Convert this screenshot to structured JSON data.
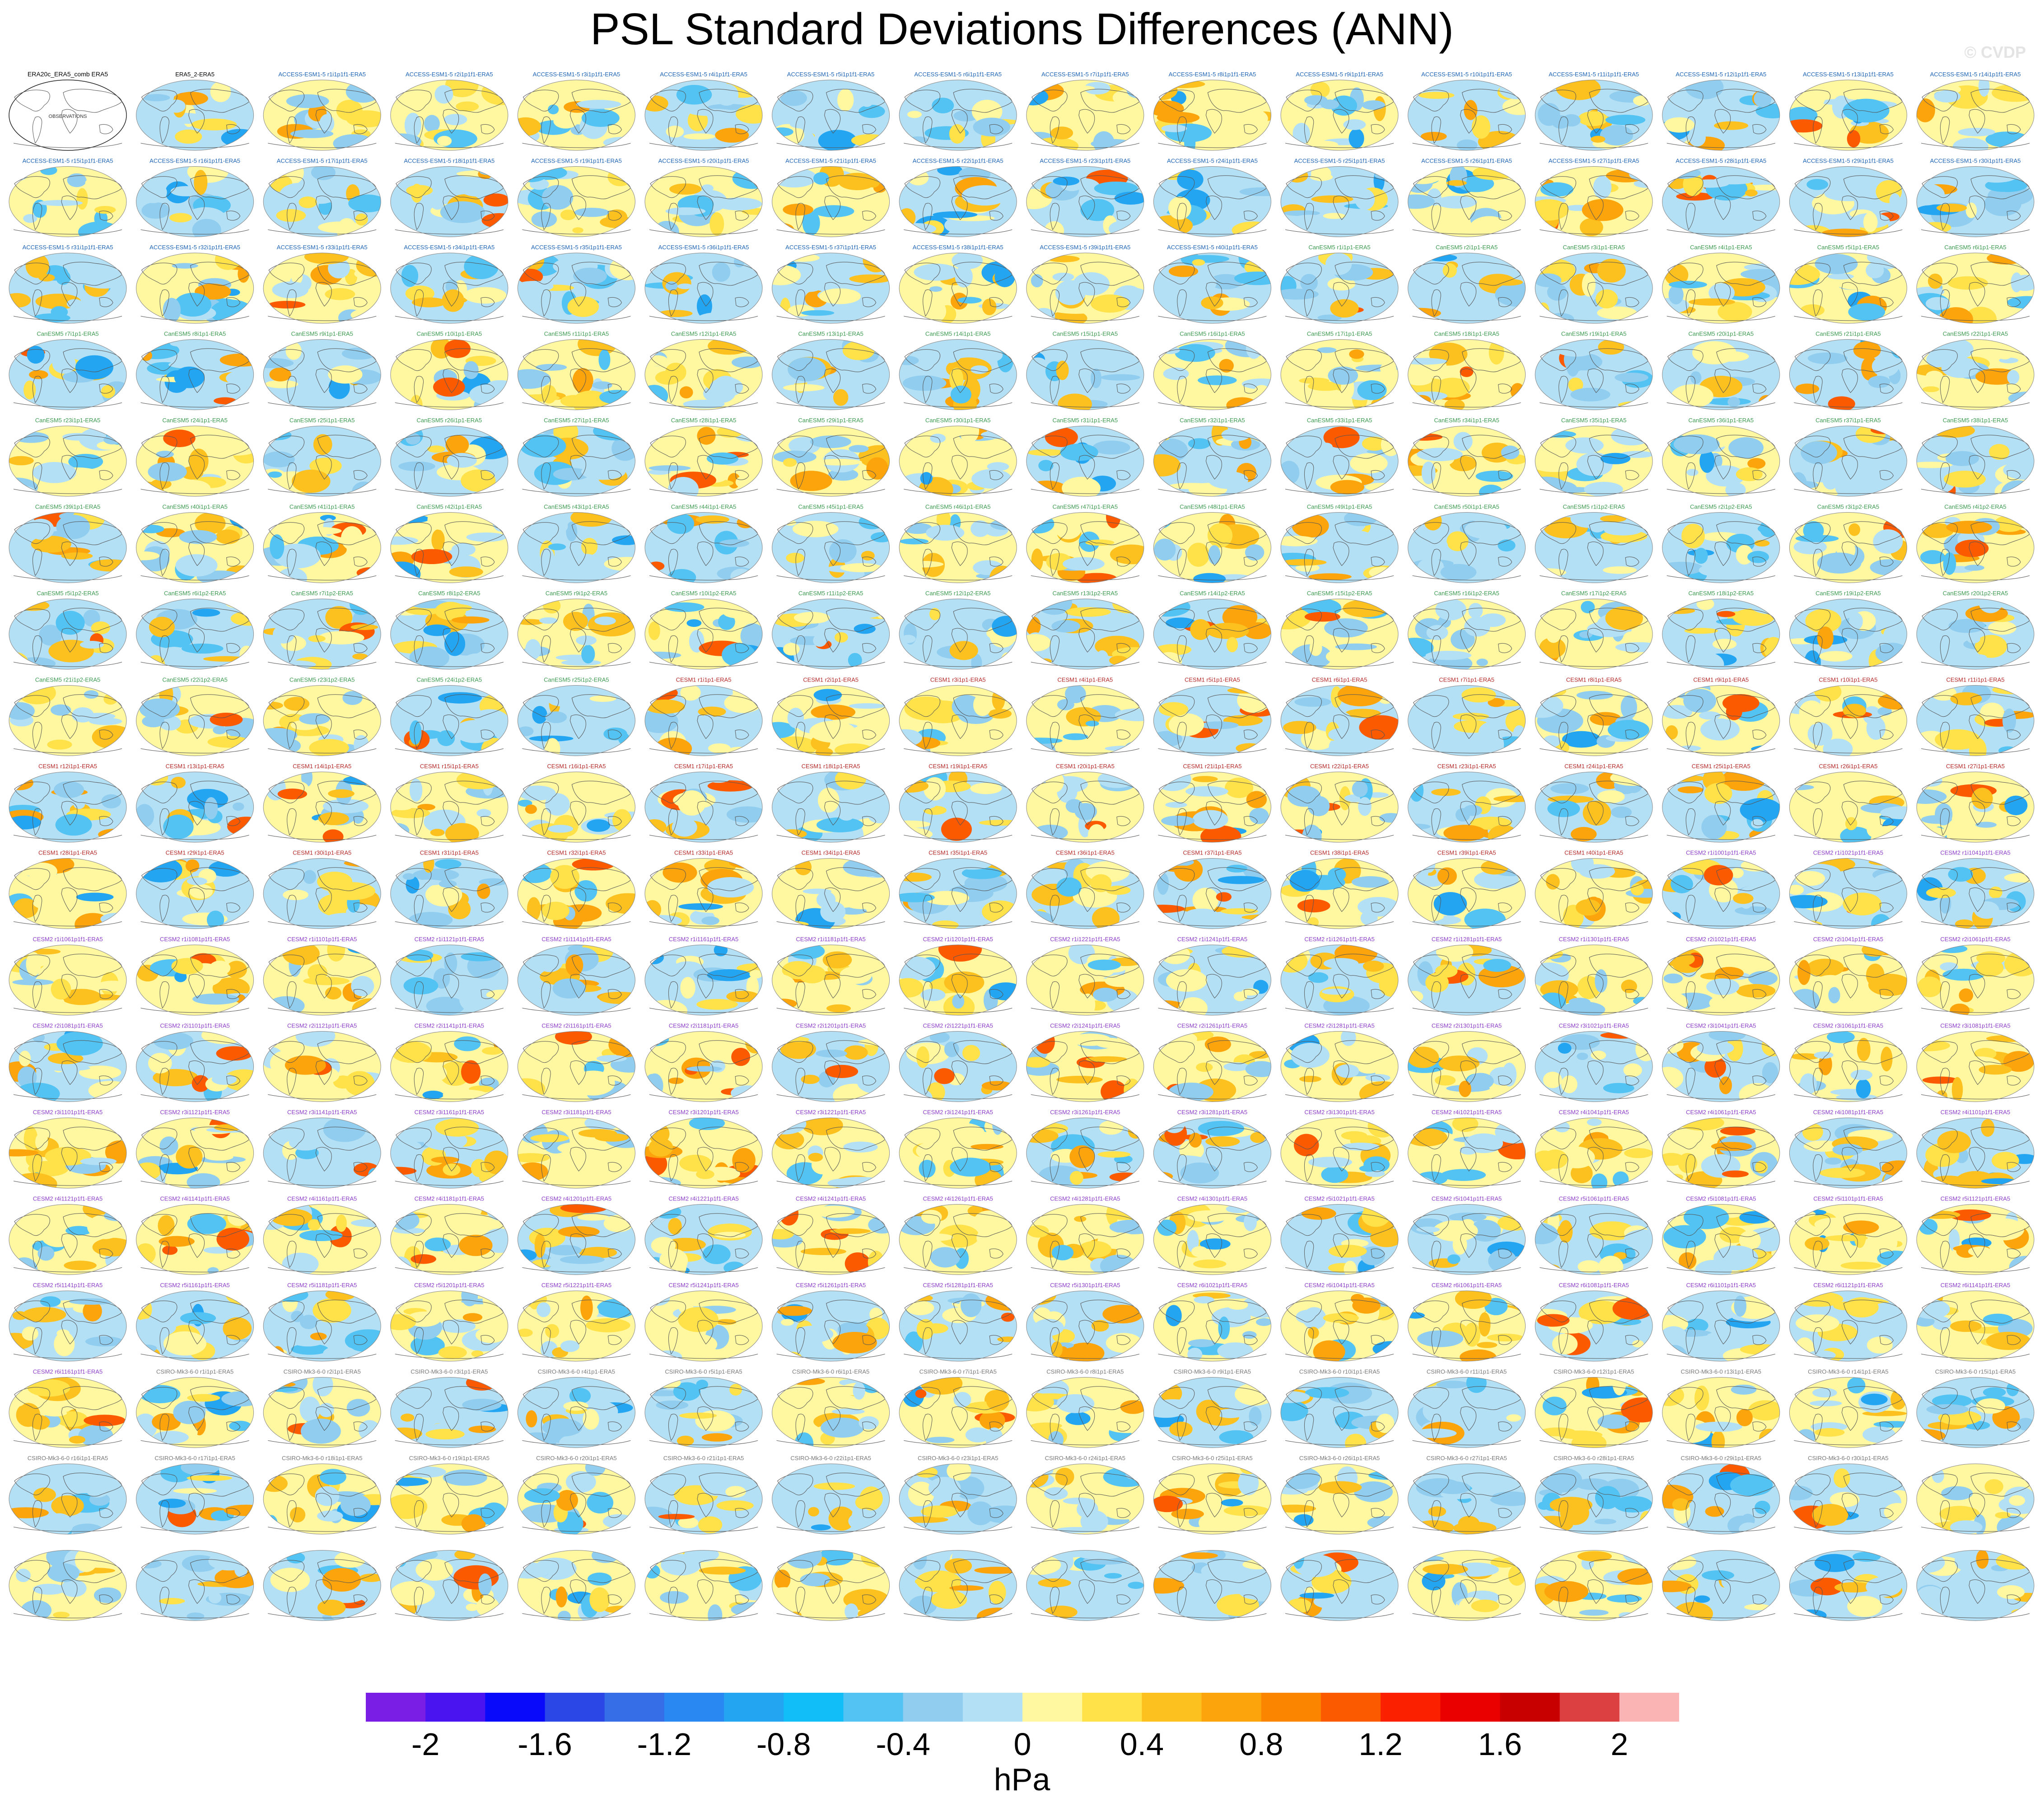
{
  "title": "PSL Standard Deviations Differences (ANN)",
  "watermark": "© CVDP",
  "units": "hPa",
  "colorbar": {
    "colors": [
      "#7a1ee6",
      "#4a14f0",
      "#0a0afa",
      "#2b48e6",
      "#356ee6",
      "#2a88f2",
      "#23a5f2",
      "#12bef7",
      "#52c3f2",
      "#90cdee",
      "#b4e0f6",
      "#fff8a0",
      "#ffe24a",
      "#fcc11e",
      "#fca40c",
      "#fc8500",
      "#fc5a00",
      "#fa2000",
      "#eb0000",
      "#c80000",
      "#dc4040",
      "#fab4b4"
    ],
    "labels": [
      "-2",
      "-1.6",
      "-1.2",
      "-0.8",
      "-0.4",
      "0",
      "0.4",
      "0.8",
      "1.2",
      "1.6",
      "2"
    ]
  },
  "reference_panel": {
    "title": "ERA20c_ERA5_comb ERA5",
    "subtitle": "OBSERVATIONS"
  },
  "panels": [
    "ERA5_2-ERA5",
    "ACCESS-ESM1-5 r1i1p1f1-ERA5",
    "ACCESS-ESM1-5 r2i1p1f1-ERA5",
    "ACCESS-ESM1-5 r3i1p1f1-ERA5",
    "ACCESS-ESM1-5 r4i1p1f1-ERA5",
    "ACCESS-ESM1-5 r5i1p1f1-ERA5",
    "ACCESS-ESM1-5 r6i1p1f1-ERA5",
    "ACCESS-ESM1-5 r7i1p1f1-ERA5",
    "ACCESS-ESM1-5 r8i1p1f1-ERA5",
    "ACCESS-ESM1-5 r9i1p1f1-ERA5",
    "ACCESS-ESM1-5 r10i1p1f1-ERA5",
    "ACCESS-ESM1-5 r11i1p1f1-ERA5",
    "ACCESS-ESM1-5 r12i1p1f1-ERA5",
    "ACCESS-ESM1-5 r13i1p1f1-ERA5",
    "ACCESS-ESM1-5 r14i1p1f1-ERA5",
    "ACCESS-ESM1-5 r15i1p1f1-ERA5",
    "ACCESS-ESM1-5 r16i1p1f1-ERA5",
    "ACCESS-ESM1-5 r17i1p1f1-ERA5",
    "ACCESS-ESM1-5 r18i1p1f1-ERA5",
    "ACCESS-ESM1-5 r19i1p1f1-ERA5",
    "ACCESS-ESM1-5 r20i1p1f1-ERA5",
    "ACCESS-ESM1-5 r21i1p1f1-ERA5",
    "ACCESS-ESM1-5 r22i1p1f1-ERA5",
    "ACCESS-ESM1-5 r23i1p1f1-ERA5",
    "ACCESS-ESM1-5 r24i1p1f1-ERA5",
    "ACCESS-ESM1-5 r25i1p1f1-ERA5",
    "ACCESS-ESM1-5 r26i1p1f1-ERA5",
    "ACCESS-ESM1-5 r27i1p1f1-ERA5",
    "ACCESS-ESM1-5 r28i1p1f1-ERA5",
    "ACCESS-ESM1-5 r29i1p1f1-ERA5",
    "ACCESS-ESM1-5 r30i1p1f1-ERA5",
    "ACCESS-ESM1-5 r31i1p1f1-ERA5",
    "ACCESS-ESM1-5 r32i1p1f1-ERA5",
    "ACCESS-ESM1-5 r33i1p1f1-ERA5",
    "ACCESS-ESM1-5 r34i1p1f1-ERA5",
    "ACCESS-ESM1-5 r35i1p1f1-ERA5",
    "ACCESS-ESM1-5 r36i1p1f1-ERA5",
    "ACCESS-ESM1-5 r37i1p1f1-ERA5",
    "ACCESS-ESM1-5 r38i1p1f1-ERA5",
    "ACCESS-ESM1-5 r39i1p1f1-ERA5",
    "ACCESS-ESM1-5 r40i1p1f1-ERA5",
    "CanESM5 r1i1p1-ERA5",
    "CanESM5 r2i1p1-ERA5",
    "CanESM5 r3i1p1-ERA5",
    "CanESM5 r4i1p1-ERA5",
    "CanESM5 r5i1p1-ERA5",
    "CanESM5 r6i1p1-ERA5",
    "CanESM5 r7i1p1-ERA5",
    "CanESM5 r8i1p1-ERA5",
    "CanESM5 r9i1p1-ERA5",
    "CanESM5 r10i1p1-ERA5",
    "CanESM5 r11i1p1-ERA5",
    "CanESM5 r12i1p1-ERA5",
    "CanESM5 r13i1p1-ERA5",
    "CanESM5 r14i1p1-ERA5",
    "CanESM5 r15i1p1-ERA5",
    "CanESM5 r16i1p1-ERA5",
    "CanESM5 r17i1p1-ERA5",
    "CanESM5 r18i1p1-ERA5",
    "CanESM5 r19i1p1-ERA5",
    "CanESM5 r20i1p1-ERA5",
    "CanESM5 r21i1p1-ERA5",
    "CanESM5 r22i1p1-ERA5",
    "CanESM5 r23i1p1-ERA5",
    "CanESM5 r24i1p1-ERA5",
    "CanESM5 r25i1p1-ERA5",
    "CanESM5 r26i1p1-ERA5",
    "CanESM5 r27i1p1-ERA5",
    "CanESM5 r28i1p1-ERA5",
    "CanESM5 r29i1p1-ERA5",
    "CanESM5 r30i1p1-ERA5",
    "CanESM5 r31i1p1-ERA5",
    "CanESM5 r32i1p1-ERA5",
    "CanESM5 r33i1p1-ERA5",
    "CanESM5 r34i1p1-ERA5",
    "CanESM5 r35i1p1-ERA5",
    "CanESM5 r36i1p1-ERA5",
    "CanESM5 r37i1p1-ERA5",
    "CanESM5 r38i1p1-ERA5",
    "CanESM5 r39i1p1-ERA5",
    "CanESM5 r40i1p1-ERA5",
    "CanESM5 r41i1p1-ERA5",
    "CanESM5 r42i1p1-ERA5",
    "CanESM5 r43i1p1-ERA5",
    "CanESM5 r44i1p1-ERA5",
    "CanESM5 r45i1p1-ERA5",
    "CanESM5 r46i1p1-ERA5",
    "CanESM5 r47i1p1-ERA5",
    "CanESM5 r48i1p1-ERA5",
    "CanESM5 r49i1p1-ERA5",
    "CanESM5 r50i1p1-ERA5",
    "CanESM5 r1i1p2-ERA5",
    "CanESM5 r2i1p2-ERA5",
    "CanESM5 r3i1p2-ERA5",
    "CanESM5 r4i1p2-ERA5",
    "CanESM5 r5i1p2-ERA5",
    "CanESM5 r6i1p2-ERA5",
    "CanESM5 r7i1p2-ERA5",
    "CanESM5 r8i1p2-ERA5",
    "CanESM5 r9i1p2-ERA5",
    "CanESM5 r10i1p2-ERA5",
    "CanESM5 r11i1p2-ERA5",
    "CanESM5 r12i1p2-ERA5",
    "CanESM5 r13i1p2-ERA5",
    "CanESM5 r14i1p2-ERA5",
    "CanESM5 r15i1p2-ERA5",
    "CanESM5 r16i1p2-ERA5",
    "CanESM5 r17i1p2-ERA5",
    "CanESM5 r18i1p2-ERA5",
    "CanESM5 r19i1p2-ERA5",
    "CanESM5 r20i1p2-ERA5",
    "CanESM5 r21i1p2-ERA5",
    "CanESM5 r22i1p2-ERA5",
    "CanESM5 r23i1p2-ERA5",
    "CanESM5 r24i1p2-ERA5",
    "CanESM5 r25i1p2-ERA5",
    "CESM1 r1i1p1-ERA5",
    "CESM1 r2i1p1-ERA5",
    "CESM1 r3i1p1-ERA5",
    "CESM1 r4i1p1-ERA5",
    "CESM1 r5i1p1-ERA5",
    "CESM1 r6i1p1-ERA5",
    "CESM1 r7i1p1-ERA5",
    "CESM1 r8i1p1-ERA5",
    "CESM1 r9i1p1-ERA5",
    "CESM1 r10i1p1-ERA5",
    "CESM1 r11i1p1-ERA5",
    "CESM1 r12i1p1-ERA5",
    "CESM1 r13i1p1-ERA5",
    "CESM1 r14i1p1-ERA5",
    "CESM1 r15i1p1-ERA5",
    "CESM1 r16i1p1-ERA5",
    "CESM1 r17i1p1-ERA5",
    "CESM1 r18i1p1-ERA5",
    "CESM1 r19i1p1-ERA5",
    "CESM1 r20i1p1-ERA5",
    "CESM1 r21i1p1-ERA5",
    "CESM1 r22i1p1-ERA5",
    "CESM1 r23i1p1-ERA5",
    "CESM1 r24i1p1-ERA5",
    "CESM1 r25i1p1-ERA5",
    "CESM1 r26i1p1-ERA5",
    "CESM1 r27i1p1-ERA5",
    "CESM1 r28i1p1-ERA5",
    "CESM1 r29i1p1-ERA5",
    "CESM1 r30i1p1-ERA5",
    "CESM1 r31i1p1-ERA5",
    "CESM1 r32i1p1-ERA5",
    "CESM1 r33i1p1-ERA5",
    "CESM1 r34i1p1-ERA5",
    "CESM1 r35i1p1-ERA5",
    "CESM1 r36i1p1-ERA5",
    "CESM1 r37i1p1-ERA5",
    "CESM1 r38i1p1-ERA5",
    "CESM1 r39i1p1-ERA5",
    "CESM1 r40i1p1-ERA5",
    "CESM2 r1i1001p1f1-ERA5",
    "CESM2 r1i1021p1f1-ERA5",
    "CESM2 r1i1041p1f1-ERA5",
    "CESM2 r1i1061p1f1-ERA5",
    "CESM2 r1i1081p1f1-ERA5",
    "CESM2 r1i1101p1f1-ERA5",
    "CESM2 r1i1121p1f1-ERA5",
    "CESM2 r1i1141p1f1-ERA5",
    "CESM2 r1i1161p1f1-ERA5",
    "CESM2 r1i1181p1f1-ERA5",
    "CESM2 r1i1201p1f1-ERA5",
    "CESM2 r1i1221p1f1-ERA5",
    "CESM2 r1i1241p1f1-ERA5",
    "CESM2 r1i1261p1f1-ERA5",
    "CESM2 r1i1281p1f1-ERA5",
    "CESM2 r1i1301p1f1-ERA5",
    "CESM2 r2i1021p1f1-ERA5",
    "CESM2 r2i1041p1f1-ERA5",
    "CESM2 r2i1061p1f1-ERA5",
    "CESM2 r2i1081p1f1-ERA5",
    "CESM2 r2i1101p1f1-ERA5",
    "CESM2 r2i1121p1f1-ERA5",
    "CESM2 r2i1141p1f1-ERA5",
    "CESM2 r2i1161p1f1-ERA5",
    "CESM2 r2i1181p1f1-ERA5",
    "CESM2 r2i1201p1f1-ERA5",
    "CESM2 r2i1221p1f1-ERA5",
    "CESM2 r2i1241p1f1-ERA5",
    "CESM2 r2i1261p1f1-ERA5",
    "CESM2 r2i1281p1f1-ERA5",
    "CESM2 r2i1301p1f1-ERA5",
    "CESM2 r3i1021p1f1-ERA5",
    "CESM2 r3i1041p1f1-ERA5",
    "CESM2 r3i1061p1f1-ERA5",
    "CESM2 r3i1081p1f1-ERA5",
    "CESM2 r3i1101p1f1-ERA5",
    "CESM2 r3i1121p1f1-ERA5",
    "CESM2 r3i1141p1f1-ERA5",
    "CESM2 r3i1161p1f1-ERA5",
    "CESM2 r3i1181p1f1-ERA5",
    "CESM2 r3i1201p1f1-ERA5",
    "CESM2 r3i1221p1f1-ERA5",
    "CESM2 r3i1241p1f1-ERA5",
    "CESM2 r3i1261p1f1-ERA5",
    "CESM2 r3i1281p1f1-ERA5",
    "CESM2 r3i1301p1f1-ERA5",
    "CESM2 r4i1021p1f1-ERA5",
    "CESM2 r4i1041p1f1-ERA5",
    "CESM2 r4i1061p1f1-ERA5",
    "CESM2 r4i1081p1f1-ERA5",
    "CESM2 r4i1101p1f1-ERA5",
    "CESM2 r4i1121p1f1-ERA5",
    "CESM2 r4i1141p1f1-ERA5",
    "CESM2 r4i1161p1f1-ERA5",
    "CESM2 r4i1181p1f1-ERA5",
    "CESM2 r4i1201p1f1-ERA5",
    "CESM2 r4i1221p1f1-ERA5",
    "CESM2 r4i1241p1f1-ERA5",
    "CESM2 r4i1261p1f1-ERA5",
    "CESM2 r4i1281p1f1-ERA5",
    "CESM2 r4i1301p1f1-ERA5",
    "CESM2 r5i1021p1f1-ERA5",
    "CESM2 r5i1041p1f1-ERA5",
    "CESM2 r5i1061p1f1-ERA5",
    "CESM2 r5i1081p1f1-ERA5",
    "CESM2 r5i1101p1f1-ERA5",
    "CESM2 r5i1121p1f1-ERA5",
    "CESM2 r5i1141p1f1-ERA5",
    "CESM2 r5i1161p1f1-ERA5",
    "CESM2 r5i1181p1f1-ERA5",
    "CESM2 r5i1201p1f1-ERA5",
    "CESM2 r5i1221p1f1-ERA5",
    "CESM2 r5i1241p1f1-ERA5",
    "CESM2 r5i1261p1f1-ERA5",
    "CESM2 r5i1281p1f1-ERA5",
    "CESM2 r5i1301p1f1-ERA5",
    "CESM2 r6i1021p1f1-ERA5",
    "CESM2 r6i1041p1f1-ERA5",
    "CESM2 r6i1061p1f1-ERA5",
    "CESM2 r6i1081p1f1-ERA5",
    "CESM2 r6i1101p1f1-ERA5",
    "CESM2 r6i1121p1f1-ERA5",
    "CESM2 r6i1141p1f1-ERA5",
    "CESM2 r6i1161p1f1-ERA5",
    "CSIRO-Mk3-6-0 r1i1p1-ERA5",
    "CSIRO-Mk3-6-0 r2i1p1-ERA5",
    "CSIRO-Mk3-6-0 r3i1p1-ERA5",
    "CSIRO-Mk3-6-0 r4i1p1-ERA5",
    "CSIRO-Mk3-6-0 r5i1p1-ERA5",
    "CSIRO-Mk3-6-0 r6i1p1-ERA5",
    "CSIRO-Mk3-6-0 r7i1p1-ERA5",
    "CSIRO-Mk3-6-0 r8i1p1-ERA5",
    "CSIRO-Mk3-6-0 r9i1p1-ERA5",
    "CSIRO-Mk3-6-0 r10i1p1-ERA5",
    "CSIRO-Mk3-6-0 r11i1p1-ERA5",
    "CSIRO-Mk3-6-0 r12i1p1-ERA5",
    "CSIRO-Mk3-6-0 r13i1p1-ERA5",
    "CSIRO-Mk3-6-0 r14i1p1-ERA5",
    "CSIRO-Mk3-6-0 r15i1p1-ERA5",
    "CSIRO-Mk3-6-0 r16i1p1-ERA5",
    "CSIRO-Mk3-6-0 r17i1p1-ERA5",
    "CSIRO-Mk3-6-0 r18i1p1-ERA5",
    "CSIRO-Mk3-6-0 r19i1p1-ERA5",
    "CSIRO-Mk3-6-0 r20i1p1-ERA5",
    "CSIRO-Mk3-6-0 r21i1p1-ERA5",
    "CSIRO-Mk3-6-0 r22i1p1-ERA5",
    "CSIRO-Mk3-6-0 r23i1p1-ERA5",
    "CSIRO-Mk3-6-0 r24i1p1-ERA5",
    "CSIRO-Mk3-6-0 r25i1p1-ERA5",
    "CSIRO-Mk3-6-0 r26i1p1-ERA5",
    "CSIRO-Mk3-6-0 r27i1p1-ERA5",
    "CSIRO-Mk3-6-0 r28i1p1-ERA5",
    "CSIRO-Mk3-6-0 r29i1p1-ERA5",
    "CSIRO-Mk3-6-0 r30i1p1-ERA5"
  ],
  "title_colors": {
    "ACCESS": "#1e64b4",
    "CanESM5": "#3c9a50",
    "CESM1": "#b42828",
    "CESM2": "#8c3cc8",
    "CSIRO": "#787878",
    "ERA5": "#000000"
  }
}
